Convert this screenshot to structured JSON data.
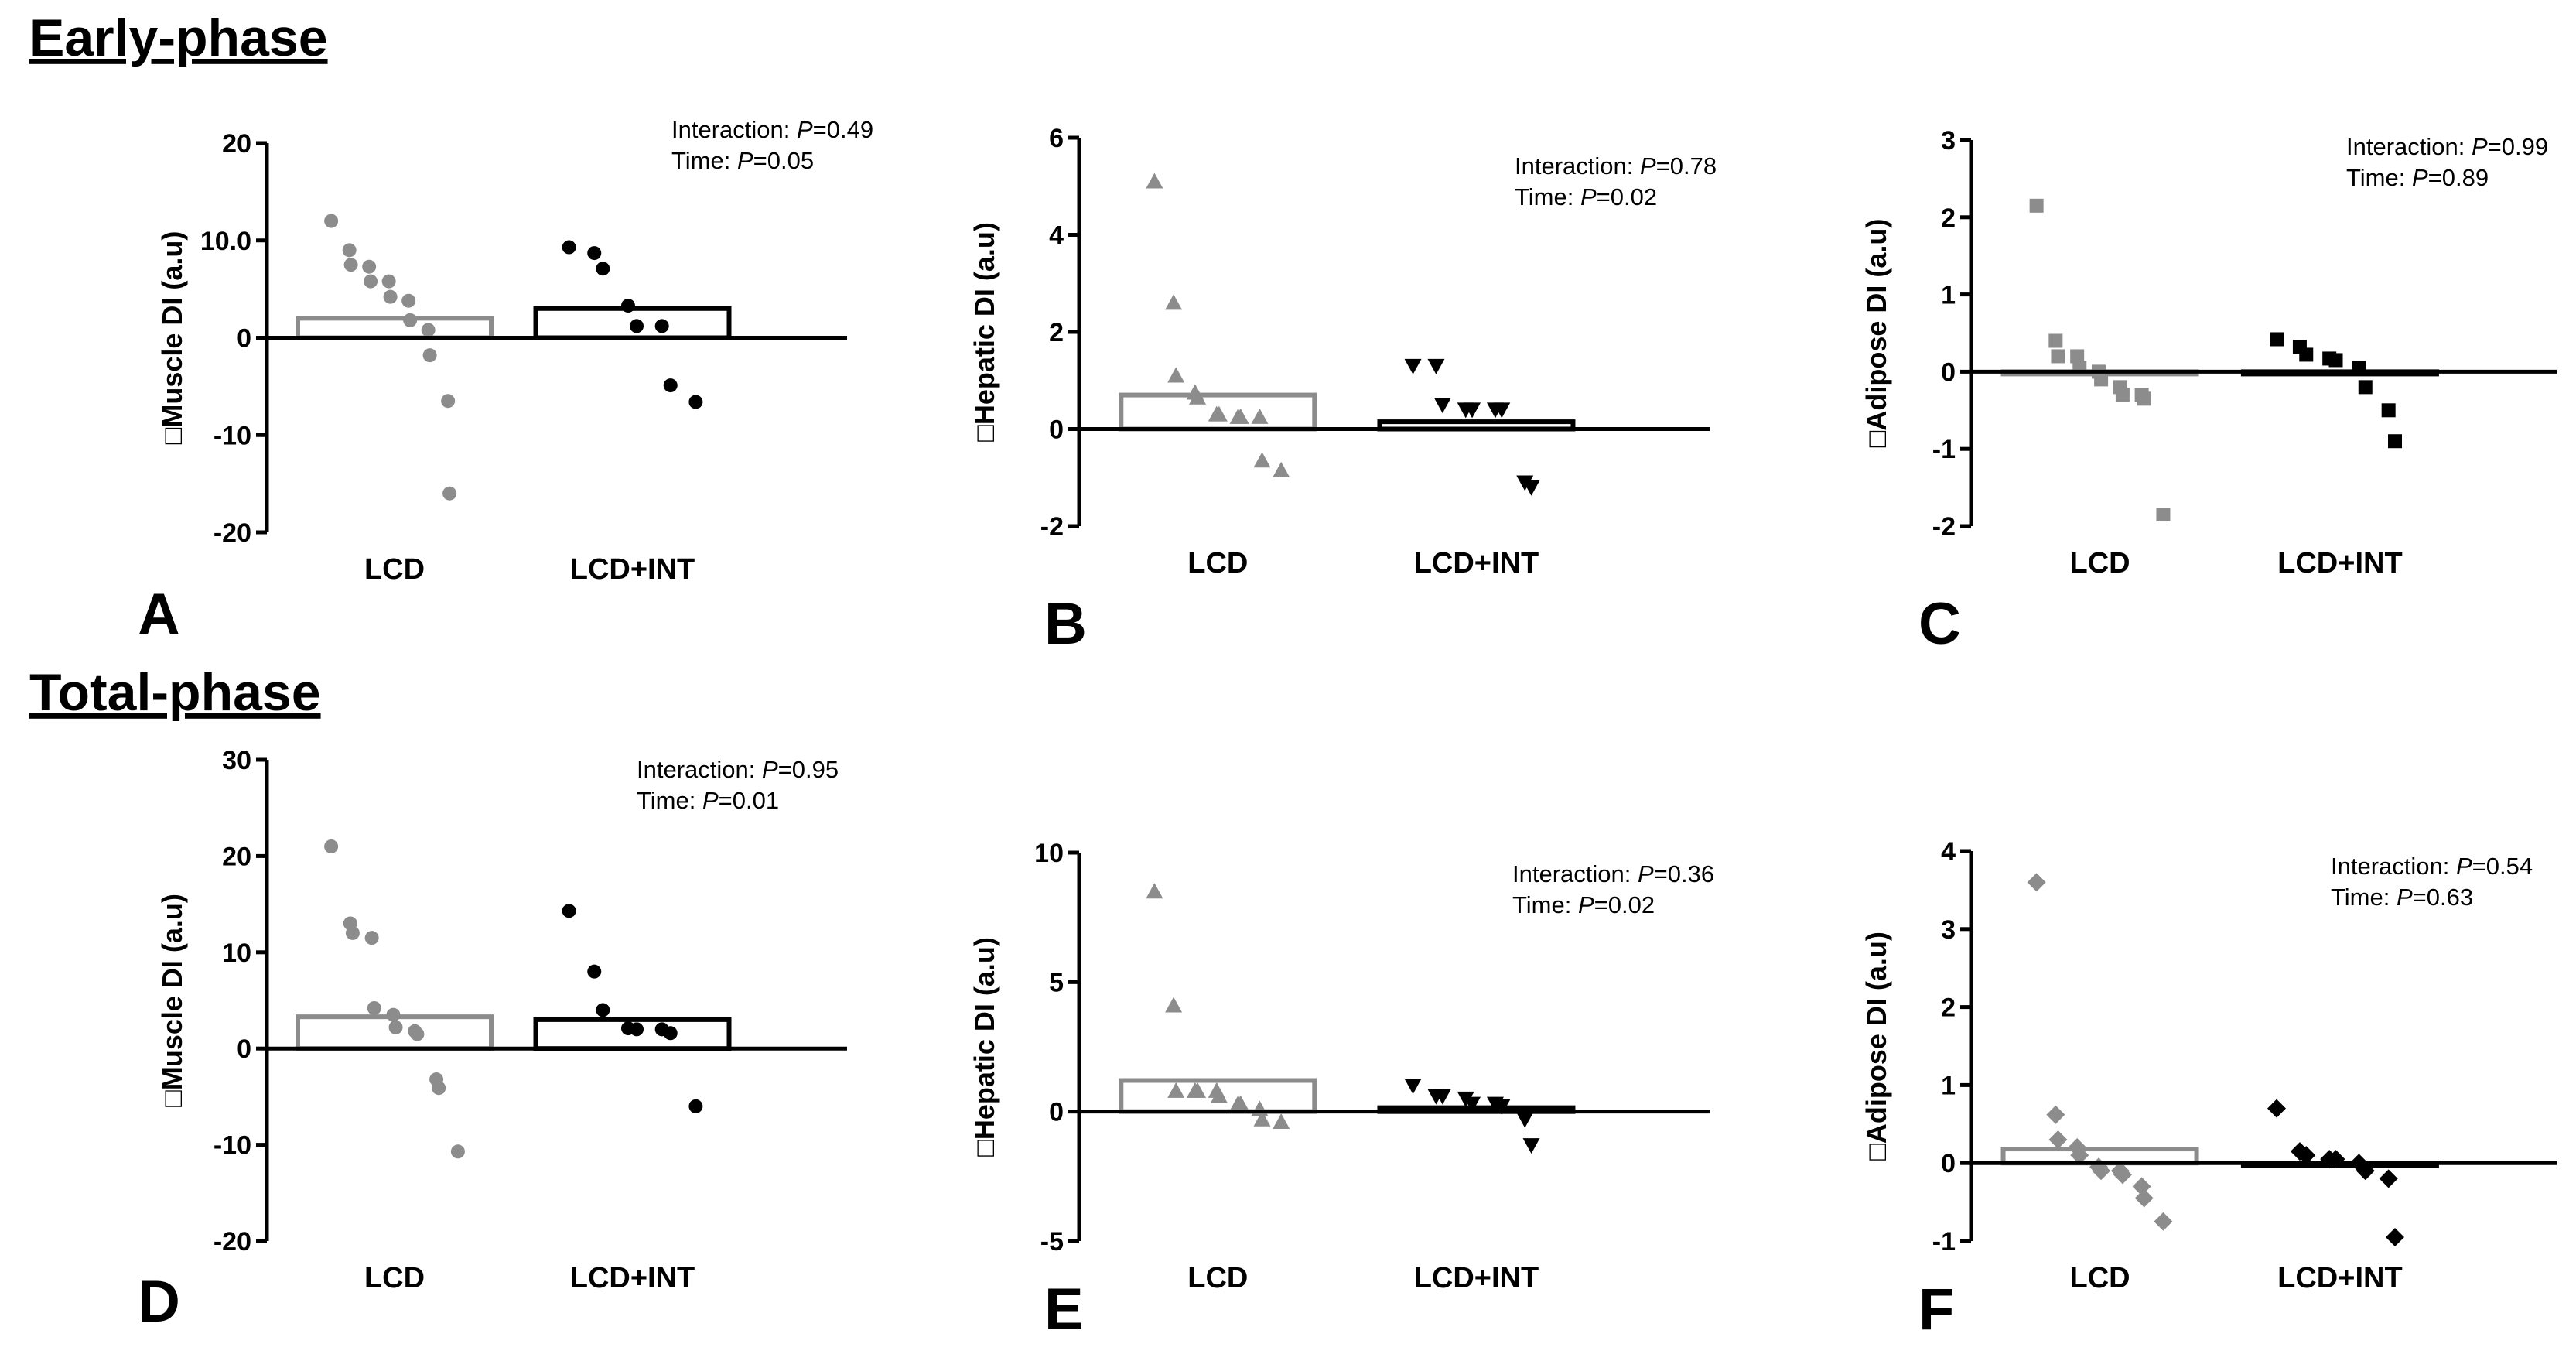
{
  "sections": {
    "early": "Early-phase",
    "total": "Total-phase"
  },
  "chart_data": [
    {
      "id": "A",
      "panel_label": "A",
      "type": "bar",
      "marker": "circle",
      "categories": [
        "LCD",
        "LCD+INT"
      ],
      "ylabel": "□Muscle DI (a.u)",
      "ylim": [
        -20,
        20
      ],
      "yticks": [
        "-20",
        "-10",
        "0",
        "10.0",
        "20"
      ],
      "bars": [
        2.0,
        3.0
      ],
      "bar_colors": [
        "#8c8c8c",
        "#000000"
      ],
      "points": [
        [
          12,
          9,
          7.5,
          7.3,
          5.8,
          5.8,
          4.2,
          3.8,
          1.8,
          0.8,
          -1.8,
          -6.5,
          -16
        ],
        [
          9.3,
          8.7,
          7.1,
          3.3,
          1.2,
          1.2,
          -4.9,
          -6.6
        ]
      ],
      "annotation": {
        "interaction_label": "Interaction: ",
        "interaction_p": "=0.49",
        "time_label": "Time: ",
        "time_p": "=0.05"
      }
    },
    {
      "id": "B",
      "panel_label": "B",
      "type": "bar",
      "marker": "triangle-up",
      "categories": [
        "LCD",
        "LCD+INT"
      ],
      "ylabel": "□Hepatic DI (a.u)",
      "ylim": [
        -2,
        6
      ],
      "yticks": [
        "-2",
        "0",
        "2",
        "4",
        "6"
      ],
      "bars": [
        0.7,
        0.15
      ],
      "bar_colors": [
        "#8c8c8c",
        "#000000"
      ],
      "points": [
        [
          5.1,
          2.6,
          1.1,
          0.75,
          0.65,
          0.3,
          0.3,
          0.25,
          0.25,
          0.25,
          -0.65,
          -0.85
        ],
        [
          1.3,
          1.3,
          0.5,
          0.4,
          0.4,
          0.4,
          0.4,
          -1.1,
          -1.2
        ]
      ],
      "annotation": {
        "interaction_label": "Interaction: ",
        "interaction_p": "=0.78",
        "time_label": "Time: ",
        "time_p": "=0.02"
      }
    },
    {
      "id": "C",
      "panel_label": "C",
      "type": "bar",
      "marker": "square",
      "categories": [
        "LCD",
        "LCD+INT"
      ],
      "ylabel": "□Adipose DI (a.u)",
      "ylim": [
        -2,
        3
      ],
      "yticks": [
        "-2",
        "-1",
        "0",
        "1",
        "2",
        "3"
      ],
      "bars": [
        0.0,
        -0.02
      ],
      "bar_colors": [
        "#8c8c8c",
        "#000000"
      ],
      "points": [
        [
          2.15,
          0.4,
          0.2,
          0.2,
          0.05,
          0.0,
          -0.1,
          -0.2,
          -0.3,
          -0.3,
          -0.35,
          -1.85
        ],
        [
          0.42,
          0.32,
          0.22,
          0.17,
          0.15,
          0.05,
          -0.2,
          -0.5,
          -0.9
        ]
      ],
      "annotation": {
        "interaction_label": "Interaction: ",
        "interaction_p": "=0.99",
        "time_label": "Time: ",
        "time_p": "=0.89"
      }
    },
    {
      "id": "D",
      "panel_label": "D",
      "type": "bar",
      "marker": "circle",
      "categories": [
        "LCD",
        "LCD+INT"
      ],
      "ylabel": "□Muscle DI (a.u)",
      "ylim": [
        -20,
        30
      ],
      "yticks": [
        "-20",
        "-10",
        "0",
        "10",
        "20",
        "30"
      ],
      "bars": [
        3.3,
        3.0
      ],
      "bar_colors": [
        "#8c8c8c",
        "#000000"
      ],
      "points": [
        [
          21,
          13,
          12,
          11.5,
          4.2,
          3.5,
          2.2,
          1.8,
          1.5,
          -3.2,
          -4.1,
          -10.7
        ],
        [
          14.3,
          8,
          4,
          2.1,
          2.0,
          2.0,
          1.6,
          -6
        ]
      ],
      "annotation": {
        "interaction_label": "Interaction: ",
        "interaction_p": "=0.95",
        "time_label": "Time: ",
        "time_p": "=0.01"
      }
    },
    {
      "id": "E",
      "panel_label": "E",
      "type": "bar",
      "marker": "triangle-up",
      "categories": [
        "LCD",
        "LCD+INT"
      ],
      "ylabel": "□Hepatic DI (a.u)",
      "ylim": [
        -5,
        10
      ],
      "yticks": [
        "-5",
        "0",
        "5",
        "10"
      ],
      "bars": [
        1.2,
        0.15
      ],
      "bar_colors": [
        "#8c8c8c",
        "#000000"
      ],
      "points": [
        [
          8.5,
          4.1,
          0.8,
          0.8,
          0.8,
          0.8,
          0.6,
          0.3,
          0.3,
          0.1,
          -0.3,
          -0.4
        ],
        [
          1.0,
          0.6,
          0.6,
          0.5,
          0.3,
          0.3,
          0.2,
          -0.3,
          -1.3
        ]
      ],
      "annotation": {
        "interaction_label": "Interaction: ",
        "interaction_p": "=0.36",
        "time_label": "Time: ",
        "time_p": "=0.02"
      }
    },
    {
      "id": "F",
      "panel_label": "F",
      "type": "bar",
      "marker": "diamond",
      "categories": [
        "LCD",
        "LCD+INT"
      ],
      "ylabel": "□Adipose DI (a.u)",
      "ylim": [
        -1,
        4
      ],
      "yticks": [
        "-1",
        "0",
        "1",
        "2",
        "3",
        "4"
      ],
      "bars": [
        0.18,
        -0.02
      ],
      "bar_colors": [
        "#8c8c8c",
        "#000000"
      ],
      "points": [
        [
          3.6,
          0.62,
          0.3,
          0.2,
          0.1,
          -0.05,
          -0.1,
          -0.1,
          -0.15,
          -0.3,
          -0.45,
          -0.75
        ],
        [
          0.7,
          0.15,
          0.1,
          0.05,
          0.05,
          0.0,
          -0.1,
          -0.2,
          -0.95
        ]
      ],
      "annotation": {
        "interaction_label": "Interaction: ",
        "interaction_p": "=0.54",
        "time_label": "Time: ",
        "time_p": "=0.63"
      }
    }
  ]
}
